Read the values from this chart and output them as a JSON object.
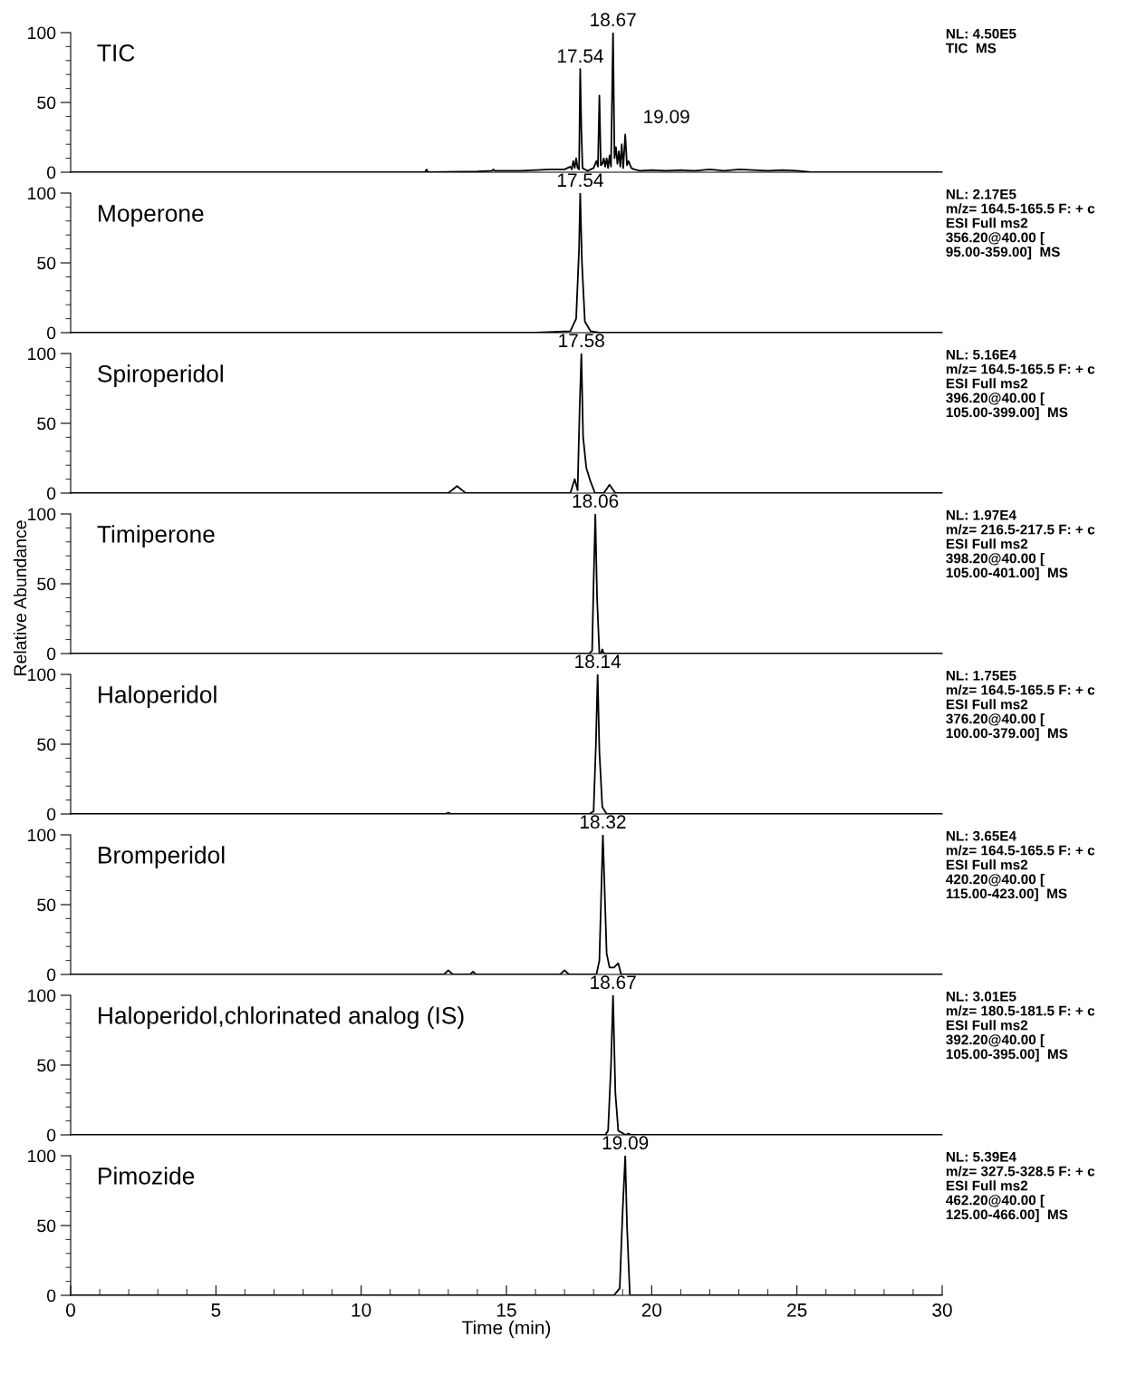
{
  "chart_data": [
    {
      "type": "line",
      "title": "TIC",
      "color": "#000000",
      "xlim": [
        0,
        30
      ],
      "ylim": [
        0,
        100
      ],
      "yticks": [
        0,
        50,
        100
      ],
      "tick_labels": "y",
      "x": [
        0,
        12.2,
        12.25,
        12.3,
        14.0,
        14.5,
        14.55,
        14.6,
        15.5,
        16.0,
        16.5,
        17.0,
        17.2,
        17.25,
        17.3,
        17.35,
        17.4,
        17.45,
        17.5,
        17.54,
        17.58,
        17.62,
        17.7,
        17.8,
        17.9,
        18.0,
        18.1,
        18.15,
        18.2,
        18.25,
        18.3,
        18.35,
        18.4,
        18.45,
        18.5,
        18.55,
        18.6,
        18.67,
        18.72,
        18.77,
        18.82,
        18.87,
        18.92,
        18.97,
        19.02,
        19.09,
        19.15,
        19.2,
        19.3,
        19.4,
        19.6,
        20.0,
        20.5,
        21,
        21.5,
        22,
        22.5,
        23,
        23.5,
        24,
        24.5,
        25,
        25.5,
        30
      ],
      "values": [
        0,
        0,
        2,
        0,
        0.5,
        1,
        2,
        1,
        1,
        1.5,
        2,
        2,
        4,
        2,
        8,
        3,
        10,
        3,
        2,
        74,
        30,
        3,
        2,
        1,
        2,
        3,
        8,
        4,
        55,
        5,
        6,
        10,
        4,
        10,
        3,
        12,
        4,
        100,
        10,
        18,
        6,
        15,
        4,
        20,
        3,
        27,
        5,
        8,
        3,
        2,
        1,
        1.5,
        1,
        1.5,
        1,
        2,
        1,
        2,
        1.5,
        1,
        1.5,
        1,
        0,
        0
      ],
      "annotations": [
        {
          "text": "17.54",
          "x": 17.54,
          "y": 74
        },
        {
          "text": "18.67",
          "x": 18.67,
          "y": 100
        },
        {
          "text": "19.09",
          "x": 19.09,
          "y": 27
        },
        "NL: 4.50E5\nTIC  MS"
      ]
    },
    {
      "type": "line",
      "title": "Moperone",
      "color": "#000000",
      "xlim": [
        0,
        30
      ],
      "ylim": [
        0,
        100
      ],
      "yticks": [
        0,
        50,
        100
      ],
      "tick_labels": "y",
      "x": [
        0,
        16,
        17.2,
        17.4,
        17.5,
        17.54,
        17.6,
        17.7,
        17.9,
        18.2,
        30
      ],
      "values": [
        0,
        0,
        1,
        10,
        60,
        100,
        50,
        8,
        1,
        0,
        0
      ],
      "annotations": [
        {
          "text": "17.54",
          "x": 17.54,
          "y": 100
        },
        "NL: 2.17E5\nm/z= 164.5-165.5 F: + c\nESI Full ms2\n356.20@40.00 [\n95.00-359.00]  MS"
      ]
    },
    {
      "type": "line",
      "title": "Spiroperidol",
      "color": "#000000",
      "xlim": [
        0,
        30
      ],
      "ylim": [
        0,
        100
      ],
      "yticks": [
        0,
        50,
        100
      ],
      "tick_labels": "y",
      "x": [
        0,
        13.0,
        13.3,
        13.6,
        17.2,
        17.35,
        17.45,
        17.52,
        17.58,
        17.64,
        17.75,
        17.9,
        18.05,
        18.35,
        18.55,
        18.75,
        30
      ],
      "values": [
        0,
        0,
        5,
        0,
        0,
        10,
        2,
        60,
        100,
        40,
        18,
        8,
        0,
        0,
        6,
        0,
        0
      ],
      "annotations": [
        {
          "text": "17.58",
          "x": 17.58,
          "y": 100
        },
        "NL: 5.16E4\nm/z= 164.5-165.5 F: + c\nESI Full ms2\n396.20@40.00 [\n105.00-399.00]  MS"
      ]
    },
    {
      "type": "line",
      "title": "Timiperone",
      "ylabel": "Relative Abundance",
      "color": "#000000",
      "xlim": [
        0,
        30
      ],
      "ylim": [
        0,
        100
      ],
      "yticks": [
        0,
        50,
        100
      ],
      "tick_labels": "y",
      "x": [
        0,
        17.85,
        17.95,
        18.0,
        18.06,
        18.12,
        18.2,
        18.25,
        18.3,
        18.35,
        30
      ],
      "values": [
        0,
        0,
        2,
        50,
        100,
        40,
        0,
        0,
        3,
        0,
        0
      ],
      "annotations": [
        {
          "text": "18.06",
          "x": 18.06,
          "y": 100
        },
        "NL: 1.97E4\nm/z= 216.5-217.5 F: + c\nESI Full ms2\n398.20@40.00 [\n105.00-401.00]  MS"
      ]
    },
    {
      "type": "line",
      "title": "Haloperidol",
      "color": "#000000",
      "xlim": [
        0,
        30
      ],
      "ylim": [
        0,
        100
      ],
      "yticks": [
        0,
        50,
        100
      ],
      "tick_labels": "y",
      "x": [
        0,
        12.9,
        13.0,
        13.1,
        17.85,
        18.0,
        18.08,
        18.14,
        18.2,
        18.3,
        18.45,
        30
      ],
      "values": [
        0,
        0,
        1,
        0,
        0,
        2,
        50,
        100,
        45,
        5,
        0,
        0
      ],
      "annotations": [
        {
          "text": "18.14",
          "x": 18.14,
          "y": 100
        },
        "NL: 1.75E5\nm/z= 164.5-165.5 F: + c\nESI Full ms2\n376.20@40.00 [\n100.00-379.00]  MS"
      ]
    },
    {
      "type": "line",
      "title": "Bromperidol",
      "color": "#000000",
      "xlim": [
        0,
        30
      ],
      "ylim": [
        0,
        100
      ],
      "yticks": [
        0,
        50,
        100
      ],
      "tick_labels": "y",
      "x": [
        0,
        12.85,
        13.0,
        13.15,
        13.75,
        13.85,
        13.95,
        16.85,
        17.0,
        17.15,
        18.1,
        18.2,
        18.32,
        18.45,
        18.55,
        18.7,
        18.85,
        18.95,
        30
      ],
      "values": [
        0,
        0,
        3,
        0,
        0,
        2,
        0,
        0,
        3,
        0,
        0,
        10,
        100,
        15,
        5,
        5,
        8,
        0,
        0
      ],
      "annotations": [
        {
          "text": "18.32",
          "x": 18.32,
          "y": 100
        },
        "NL: 3.65E4\nm/z= 164.5-165.5 F: + c\nESI Full ms2\n420.20@40.00 [\n115.00-423.00]  MS"
      ]
    },
    {
      "type": "line",
      "title": "Haloperidol,chlorinated analog (IS)",
      "color": "#000000",
      "xlim": [
        0,
        30
      ],
      "ylim": [
        0,
        100
      ],
      "yticks": [
        0,
        50,
        100
      ],
      "tick_labels": "y",
      "x": [
        0,
        18.4,
        18.5,
        18.6,
        18.67,
        18.75,
        18.85,
        19.1,
        19.2,
        19.3,
        30
      ],
      "values": [
        0,
        0,
        3,
        50,
        100,
        30,
        3,
        0,
        1,
        0,
        0
      ],
      "annotations": [
        {
          "text": "18.67",
          "x": 18.67,
          "y": 100
        },
        "NL: 3.01E5\nm/z= 180.5-181.5 F: + c\nESI Full ms2\n392.20@40.00 [\n105.00-395.00]  MS"
      ]
    },
    {
      "type": "line",
      "title": "Pimozide",
      "xlabel": "Time (min)",
      "color": "#000000",
      "xlim": [
        0,
        30
      ],
      "ylim": [
        0,
        100
      ],
      "yticks": [
        0,
        50,
        100
      ],
      "xticks": [
        0,
        5,
        10,
        15,
        20,
        25,
        30
      ],
      "x": [
        0,
        18.7,
        18.9,
        19.0,
        19.09,
        19.15,
        19.25,
        19.4,
        30
      ],
      "values": [
        0,
        0,
        5,
        60,
        100,
        50,
        0,
        0,
        0
      ],
      "annotations": [
        {
          "text": "19.09",
          "x": 19.09,
          "y": 100
        },
        "NL: 5.39E4\nm/z= 327.5-328.5 F: + c\nESI Full ms2\n462.20@40.00 [\n125.00-466.00]  MS"
      ]
    }
  ]
}
